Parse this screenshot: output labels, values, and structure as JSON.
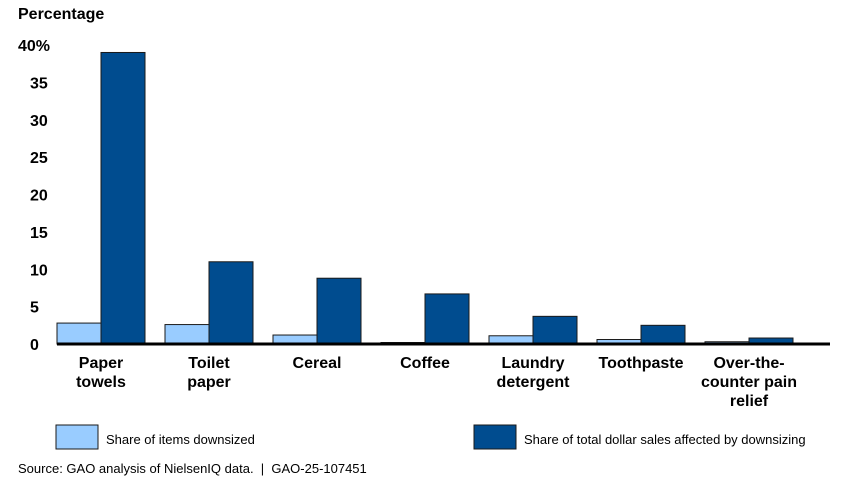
{
  "chart_data": {
    "type": "bar",
    "ylabel": "Percentage",
    "ylim": [
      0,
      40
    ],
    "yticks": [
      "0",
      "5",
      "10",
      "15",
      "20",
      "25",
      "30",
      "35",
      "40%"
    ],
    "categories": [
      [
        "Paper",
        "towels"
      ],
      [
        "Toilet",
        "paper"
      ],
      [
        "Cereal"
      ],
      [
        "Coffee"
      ],
      [
        "Laundry",
        "detergent"
      ],
      [
        "Toothpaste"
      ],
      [
        "Over-the-",
        "counter pain",
        "relief"
      ]
    ],
    "series": [
      {
        "name": "Share of items downsized",
        "color": "#99ccff",
        "values": [
          2.8,
          2.6,
          1.2,
          0.2,
          1.1,
          0.6,
          0.3
        ]
      },
      {
        "name": "Share of total dollar sales affected by downsizing",
        "color": "#004c8f",
        "values": [
          39.0,
          11.0,
          8.8,
          6.7,
          3.7,
          2.5,
          0.8
        ]
      }
    ],
    "grid": false,
    "legend": "bottom"
  },
  "source": "Source: GAO analysis of NielsenIQ data.  |  GAO-25-107451"
}
